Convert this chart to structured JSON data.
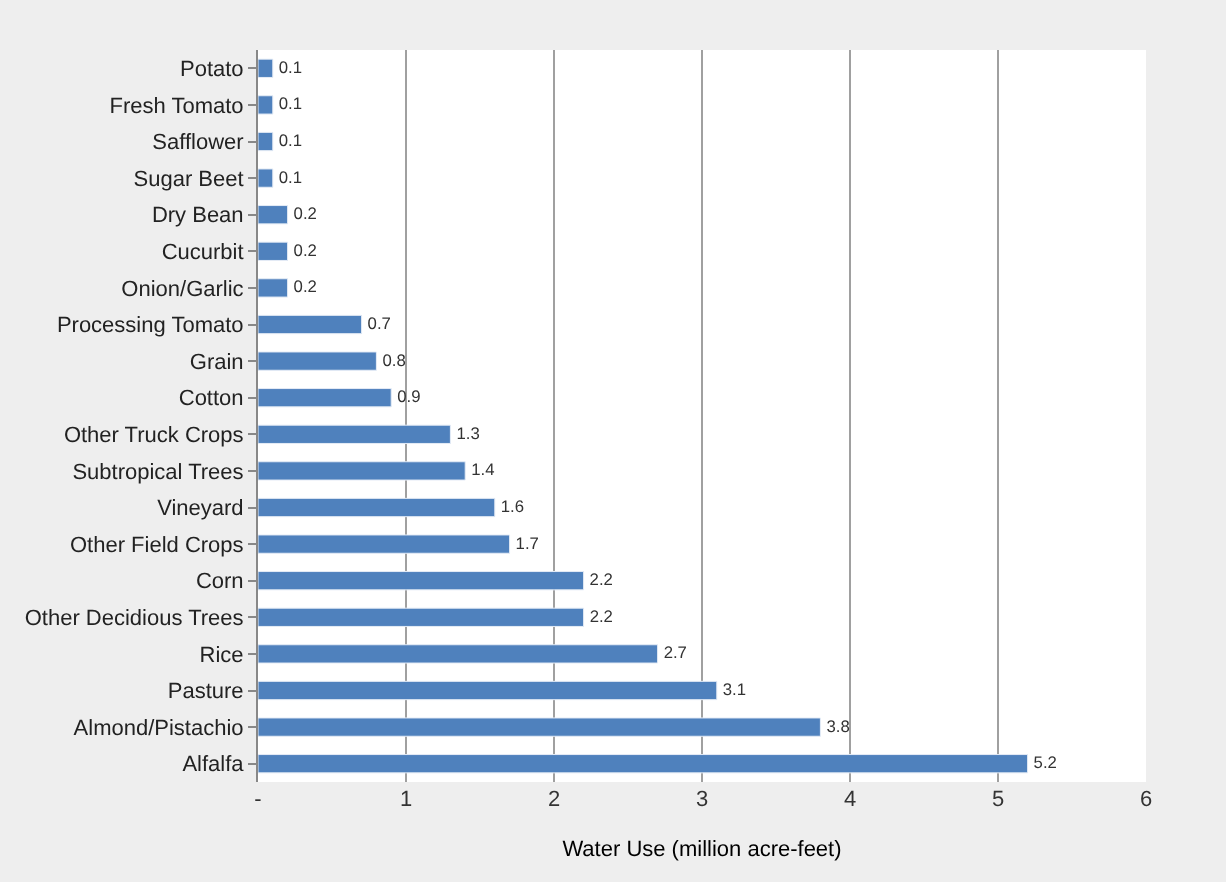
{
  "chart_data": {
    "type": "bar",
    "orientation": "horizontal",
    "xlabel": "Water Use (million acre-feet)",
    "categories": [
      "Potato",
      "Fresh Tomato",
      "Safflower",
      "Sugar Beet",
      "Dry Bean",
      "Cucurbit",
      "Onion/Garlic",
      "Processing Tomato",
      "Grain",
      "Cotton",
      "Other Truck Crops",
      "Subtropical Trees",
      "Vineyard",
      "Other Field Crops",
      "Corn",
      "Other Decidious Trees",
      "Rice",
      "Pasture",
      "Almond/Pistachio",
      "Alfalfa"
    ],
    "values": [
      0.1,
      0.1,
      0.1,
      0.1,
      0.2,
      0.2,
      0.2,
      0.7,
      0.8,
      0.9,
      1.3,
      1.4,
      1.6,
      1.7,
      2.2,
      2.2,
      2.7,
      3.1,
      3.8,
      5.2
    ],
    "color": "#4f81bd",
    "xlim": [
      0,
      6
    ],
    "xticks": [
      {
        "value": 0,
        "label": "-"
      },
      1,
      2,
      3,
      4,
      5,
      6
    ],
    "grid": "x",
    "data_labels": true
  }
}
